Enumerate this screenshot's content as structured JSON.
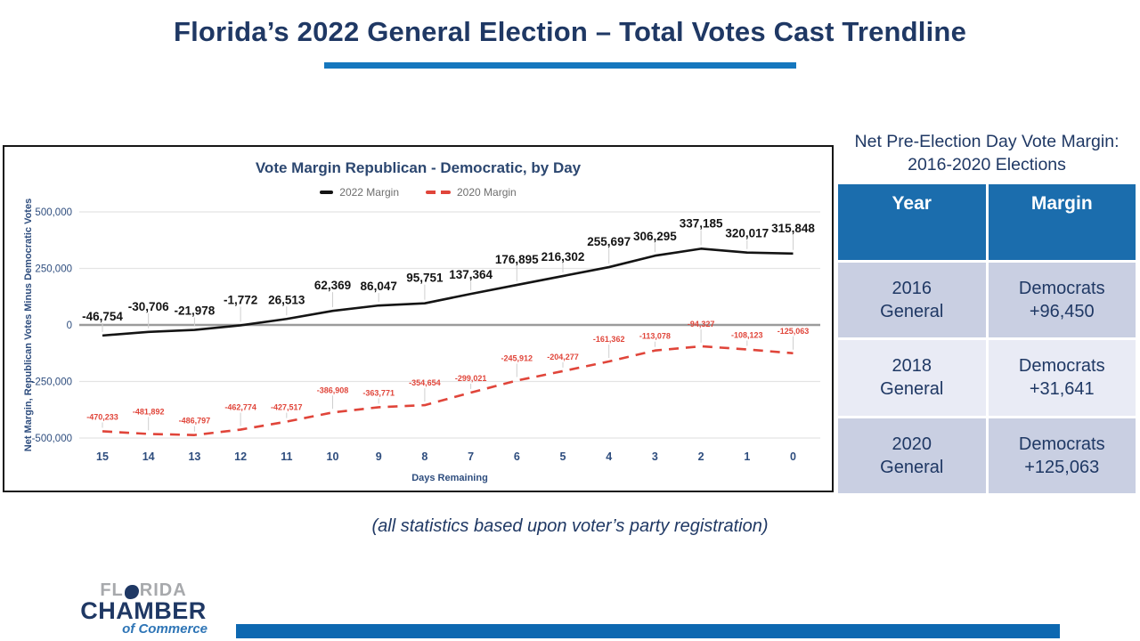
{
  "title": "Florida’s 2022 General Election – Total Votes Cast Trendline",
  "note": "(all statistics based upon voter’s party registration)",
  "colors": {
    "navy_text": "#1f3864",
    "brand_blue_underline": "#1577be",
    "table_header_blue": "#1b6dad",
    "table_row_dark": "#c9cfe2",
    "table_row_light": "#e9ebf5",
    "line_2022": "#141414",
    "line_2020": "#e0453a",
    "bottom_bar_blue": "#0d68b1",
    "axis_text": "#2e4d7e"
  },
  "chart_data": [
    {
      "type": "line",
      "title": "Vote Margin Republican - Democratic, by Day",
      "xlabel": "Days Remaining",
      "ylabel": "Net Margin, Republican Votes Minus Democratic Votes",
      "x": [
        15,
        14,
        13,
        12,
        11,
        10,
        9,
        8,
        7,
        6,
        5,
        4,
        3,
        2,
        1,
        0
      ],
      "ylim": [
        -500000,
        500000
      ],
      "yticks": [
        500000,
        250000,
        0,
        -250000,
        -500000
      ],
      "grid": true,
      "legend_position": "top",
      "series": [
        {
          "name": "2022 Margin",
          "color": "#141414",
          "style": "solid",
          "values": [
            -46754,
            -30706,
            -21978,
            -1772,
            26513,
            62369,
            86047,
            95751,
            137364,
            176895,
            216302,
            255697,
            306295,
            337185,
            320017,
            315848
          ]
        },
        {
          "name": "2020 Margin",
          "color": "#e0453a",
          "style": "dashed",
          "values": [
            -470233,
            -481892,
            -486797,
            -462774,
            -427517,
            -386908,
            -363771,
            -354654,
            -299021,
            -245912,
            -204277,
            -161362,
            -113078,
            -94327,
            -108123,
            -125063
          ]
        }
      ]
    },
    {
      "type": "table",
      "title": "Net Pre-Election Day Vote Margin: 2016-2020 Elections",
      "columns": [
        "Year",
        "Margin"
      ],
      "rows": [
        [
          "2016 General",
          "Democrats +96,450"
        ],
        [
          "2018 General",
          "Democrats +31,641"
        ],
        [
          "2020 General",
          "Democrats +125,063"
        ]
      ]
    }
  ],
  "logo": {
    "line1_pre": "FL",
    "line1_post": "RIDA",
    "line2": "CHAMBER",
    "line3": "of Commerce"
  }
}
